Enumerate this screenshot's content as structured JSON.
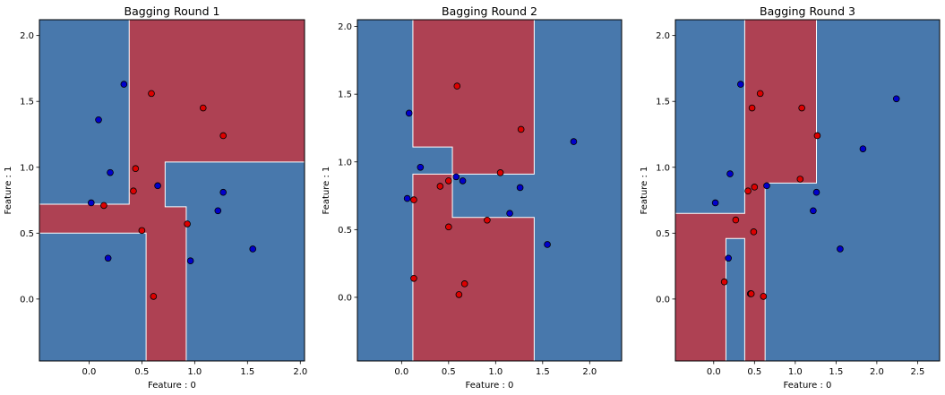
{
  "colors": {
    "region_class0": "#4878ac",
    "region_class1": "#ae4153",
    "point_class0": "#0000cc",
    "point_class1": "#dd0000",
    "boundary": "#ffffff"
  },
  "chart_data": [
    {
      "type": "scatter",
      "title": "Bagging Round 1",
      "xlabel": "Feature : 0",
      "ylabel": "Feature : 1",
      "xlim": [
        -0.47,
        2.04
      ],
      "ylim": [
        -0.47,
        2.12
      ],
      "xticks": [
        0.0,
        0.5,
        1.0,
        1.5,
        2.0
      ],
      "xtick_labels": [
        "0.0",
        "0.5",
        "1.0",
        "1.5",
        "2.0"
      ],
      "yticks": [
        0.0,
        0.5,
        1.0,
        1.5,
        2.0
      ],
      "ytick_labels": [
        "0.0",
        "0.5",
        "1.0",
        "1.5",
        "2.0"
      ],
      "decision_regions_class1": [
        [
          0.38,
          0.72,
          2.04,
          2.12
        ],
        [
          0.72,
          1.04,
          2.04,
          1.04
        ],
        [
          0.38,
          0.72,
          0.72,
          0.7
        ],
        [
          -0.47,
          0.5,
          0.92,
          0.22
        ],
        [
          0.38,
          -0.47,
          0.54,
          0.97
        ]
      ],
      "points": [
        {
          "x": 0.33,
          "y": 1.63,
          "cls": 0
        },
        {
          "x": 0.09,
          "y": 1.36,
          "cls": 0
        },
        {
          "x": 0.2,
          "y": 0.96,
          "cls": 0
        },
        {
          "x": 0.02,
          "y": 0.73,
          "cls": 0
        },
        {
          "x": 0.18,
          "y": 0.31,
          "cls": 0
        },
        {
          "x": 0.65,
          "y": 0.86,
          "cls": 0
        },
        {
          "x": 1.27,
          "y": 0.81,
          "cls": 0
        },
        {
          "x": 1.22,
          "y": 0.67,
          "cls": 0
        },
        {
          "x": 1.55,
          "y": 0.38,
          "cls": 0
        },
        {
          "x": 0.96,
          "y": 0.29,
          "cls": 0
        },
        {
          "x": 0.59,
          "y": 1.56,
          "cls": 1
        },
        {
          "x": 1.08,
          "y": 1.45,
          "cls": 1
        },
        {
          "x": 1.27,
          "y": 1.24,
          "cls": 1
        },
        {
          "x": 0.44,
          "y": 0.99,
          "cls": 1
        },
        {
          "x": 0.42,
          "y": 0.82,
          "cls": 1
        },
        {
          "x": 0.14,
          "y": 0.71,
          "cls": 1
        },
        {
          "x": 0.93,
          "y": 0.57,
          "cls": 1
        },
        {
          "x": 0.5,
          "y": 0.52,
          "cls": 1
        },
        {
          "x": 0.61,
          "y": 0.02,
          "cls": 1
        }
      ]
    },
    {
      "type": "scatter",
      "title": "Bagging Round 2",
      "xlabel": "Feature : 0",
      "ylabel": "Feature : 1",
      "xlim": [
        -0.47,
        2.34
      ],
      "ylim": [
        -0.47,
        2.05
      ],
      "xticks": [
        0.0,
        0.5,
        1.0,
        1.5,
        2.0
      ],
      "xtick_labels": [
        "0.0",
        "0.5",
        "1.0",
        "1.5",
        "2.0"
      ],
      "yticks": [
        0.0,
        0.5,
        1.0,
        1.5,
        2.0
      ],
      "ytick_labels": [
        "0.0",
        "0.5",
        "1.0",
        "1.5",
        "2.0"
      ],
      "decision_regions_class1": [
        [
          0.12,
          1.11,
          1.41,
          2.05
        ],
        [
          0.54,
          0.91,
          1.41,
          1.11
        ],
        [
          0.12,
          0.59,
          0.54,
          0.91
        ],
        [
          0.12,
          0.59,
          1.41,
          0.59
        ],
        [
          0.12,
          -0.47,
          1.41,
          -0.47
        ]
      ],
      "decision_regions_class1_polygons_note": "",
      "points": [
        {
          "x": 0.08,
          "y": 1.36,
          "cls": 0
        },
        {
          "x": 0.2,
          "y": 0.96,
          "cls": 0
        },
        {
          "x": 0.06,
          "y": 0.73,
          "cls": 0
        },
        {
          "x": 0.58,
          "y": 0.89,
          "cls": 0
        },
        {
          "x": 0.65,
          "y": 0.86,
          "cls": 0
        },
        {
          "x": 1.26,
          "y": 0.81,
          "cls": 0
        },
        {
          "x": 1.15,
          "y": 0.62,
          "cls": 0
        },
        {
          "x": 1.55,
          "y": 0.39,
          "cls": 0
        },
        {
          "x": 1.83,
          "y": 1.15,
          "cls": 0
        },
        {
          "x": 0.59,
          "y": 1.56,
          "cls": 1
        },
        {
          "x": 1.27,
          "y": 1.24,
          "cls": 1
        },
        {
          "x": 1.05,
          "y": 0.92,
          "cls": 1
        },
        {
          "x": 0.41,
          "y": 0.82,
          "cls": 1
        },
        {
          "x": 0.5,
          "y": 0.86,
          "cls": 1
        },
        {
          "x": 0.13,
          "y": 0.72,
          "cls": 1
        },
        {
          "x": 0.91,
          "y": 0.57,
          "cls": 1
        },
        {
          "x": 0.5,
          "y": 0.52,
          "cls": 1
        },
        {
          "x": 0.13,
          "y": 0.14,
          "cls": 1
        },
        {
          "x": 0.67,
          "y": 0.1,
          "cls": 1
        },
        {
          "x": 0.61,
          "y": 0.02,
          "cls": 1
        }
      ]
    },
    {
      "type": "scatter",
      "title": "Bagging Round 3",
      "xlabel": "Feature : 0",
      "ylabel": "Feature : 1",
      "xlim": [
        -0.47,
        2.77
      ],
      "ylim": [
        -0.47,
        2.12
      ],
      "xticks": [
        0.0,
        0.5,
        1.0,
        1.5,
        2.0,
        2.5
      ],
      "xtick_labels": [
        "0.0",
        "0.5",
        "1.0",
        "1.5",
        "2.0",
        "2.5"
      ],
      "yticks": [
        0.0,
        0.5,
        1.0,
        1.5,
        2.0
      ],
      "ytick_labels": [
        "0.0",
        "0.5",
        "1.0",
        "1.5",
        "2.0"
      ],
      "decision_regions_class1": [
        [
          0.38,
          0.88,
          1.26,
          2.12
        ],
        [
          -0.47,
          -0.47,
          0.15,
          0.65
        ],
        [
          0.15,
          0.46,
          0.38,
          0.65
        ],
        [
          0.38,
          -0.47,
          0.63,
          0.88
        ]
      ],
      "points": [
        {
          "x": 0.33,
          "y": 1.63,
          "cls": 0
        },
        {
          "x": 0.2,
          "y": 0.95,
          "cls": 0
        },
        {
          "x": 0.02,
          "y": 0.73,
          "cls": 0
        },
        {
          "x": 0.18,
          "y": 0.31,
          "cls": 0
        },
        {
          "x": 0.65,
          "y": 0.86,
          "cls": 0
        },
        {
          "x": 1.26,
          "y": 0.81,
          "cls": 0
        },
        {
          "x": 1.22,
          "y": 0.67,
          "cls": 0
        },
        {
          "x": 1.55,
          "y": 0.38,
          "cls": 0
        },
        {
          "x": 1.83,
          "y": 1.14,
          "cls": 0
        },
        {
          "x": 2.24,
          "y": 1.52,
          "cls": 0
        },
        {
          "x": 0.45,
          "y": 0.04,
          "cls": 0
        },
        {
          "x": 0.57,
          "y": 1.56,
          "cls": 1
        },
        {
          "x": 0.47,
          "y": 1.45,
          "cls": 1
        },
        {
          "x": 1.08,
          "y": 1.45,
          "cls": 1
        },
        {
          "x": 1.27,
          "y": 1.24,
          "cls": 1
        },
        {
          "x": 1.06,
          "y": 0.91,
          "cls": 1
        },
        {
          "x": 0.42,
          "y": 0.82,
          "cls": 1
        },
        {
          "x": 0.5,
          "y": 0.85,
          "cls": 1
        },
        {
          "x": 0.27,
          "y": 0.6,
          "cls": 1
        },
        {
          "x": 0.49,
          "y": 0.51,
          "cls": 1
        },
        {
          "x": 0.13,
          "y": 0.13,
          "cls": 1
        },
        {
          "x": 0.46,
          "y": 0.04,
          "cls": 1
        },
        {
          "x": 0.61,
          "y": 0.02,
          "cls": 1
        }
      ]
    }
  ]
}
